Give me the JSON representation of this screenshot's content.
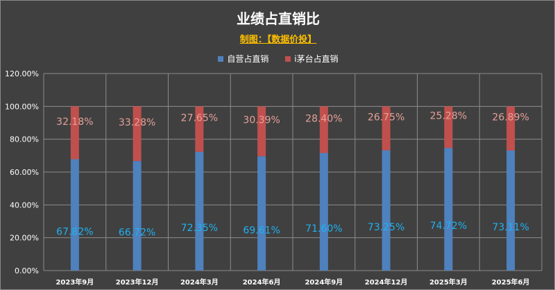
{
  "chart_data": {
    "type": "bar",
    "stacked": true,
    "title": "业绩占直销比",
    "subtitle": "制图：【数据价投】",
    "categories": [
      "2023年9月",
      "2023年12月",
      "2024年3月",
      "2024年6月",
      "2024年9月",
      "2024年12月",
      "2025年3月",
      "2025年6月"
    ],
    "series": [
      {
        "name": "自营占直销",
        "color": "#4f81bd",
        "label_color": "#1fb2f0",
        "values": [
          67.82,
          66.72,
          72.35,
          69.61,
          71.6,
          73.25,
          74.72,
          73.11
        ],
        "labels": [
          "67.82%",
          "66.72%",
          "72.35%",
          "69.61%",
          "71.60%",
          "73.25%",
          "74.72%",
          "73.11%"
        ]
      },
      {
        "name": "i茅台占直销",
        "color": "#c0504d",
        "label_color": "#e6a09a",
        "values": [
          32.18,
          33.28,
          27.65,
          30.39,
          28.4,
          26.75,
          25.28,
          26.89
        ],
        "labels": [
          "32.18%",
          "33.28%",
          "27.65%",
          "30.39%",
          "28.40%",
          "26.75%",
          "25.28%",
          "26.89%"
        ]
      }
    ],
    "ylim": [
      0,
      120
    ],
    "yticks": [
      0,
      20,
      40,
      60,
      80,
      100,
      120
    ],
    "ytick_labels": [
      "0.00%",
      "20.00%",
      "40.00%",
      "60.00%",
      "80.00%",
      "100.00%",
      "120.00%"
    ],
    "grid": true,
    "legend_position": "top-center",
    "background": "#404040",
    "grid_color": "#8c8c8c",
    "text_color": "#ffffff"
  }
}
